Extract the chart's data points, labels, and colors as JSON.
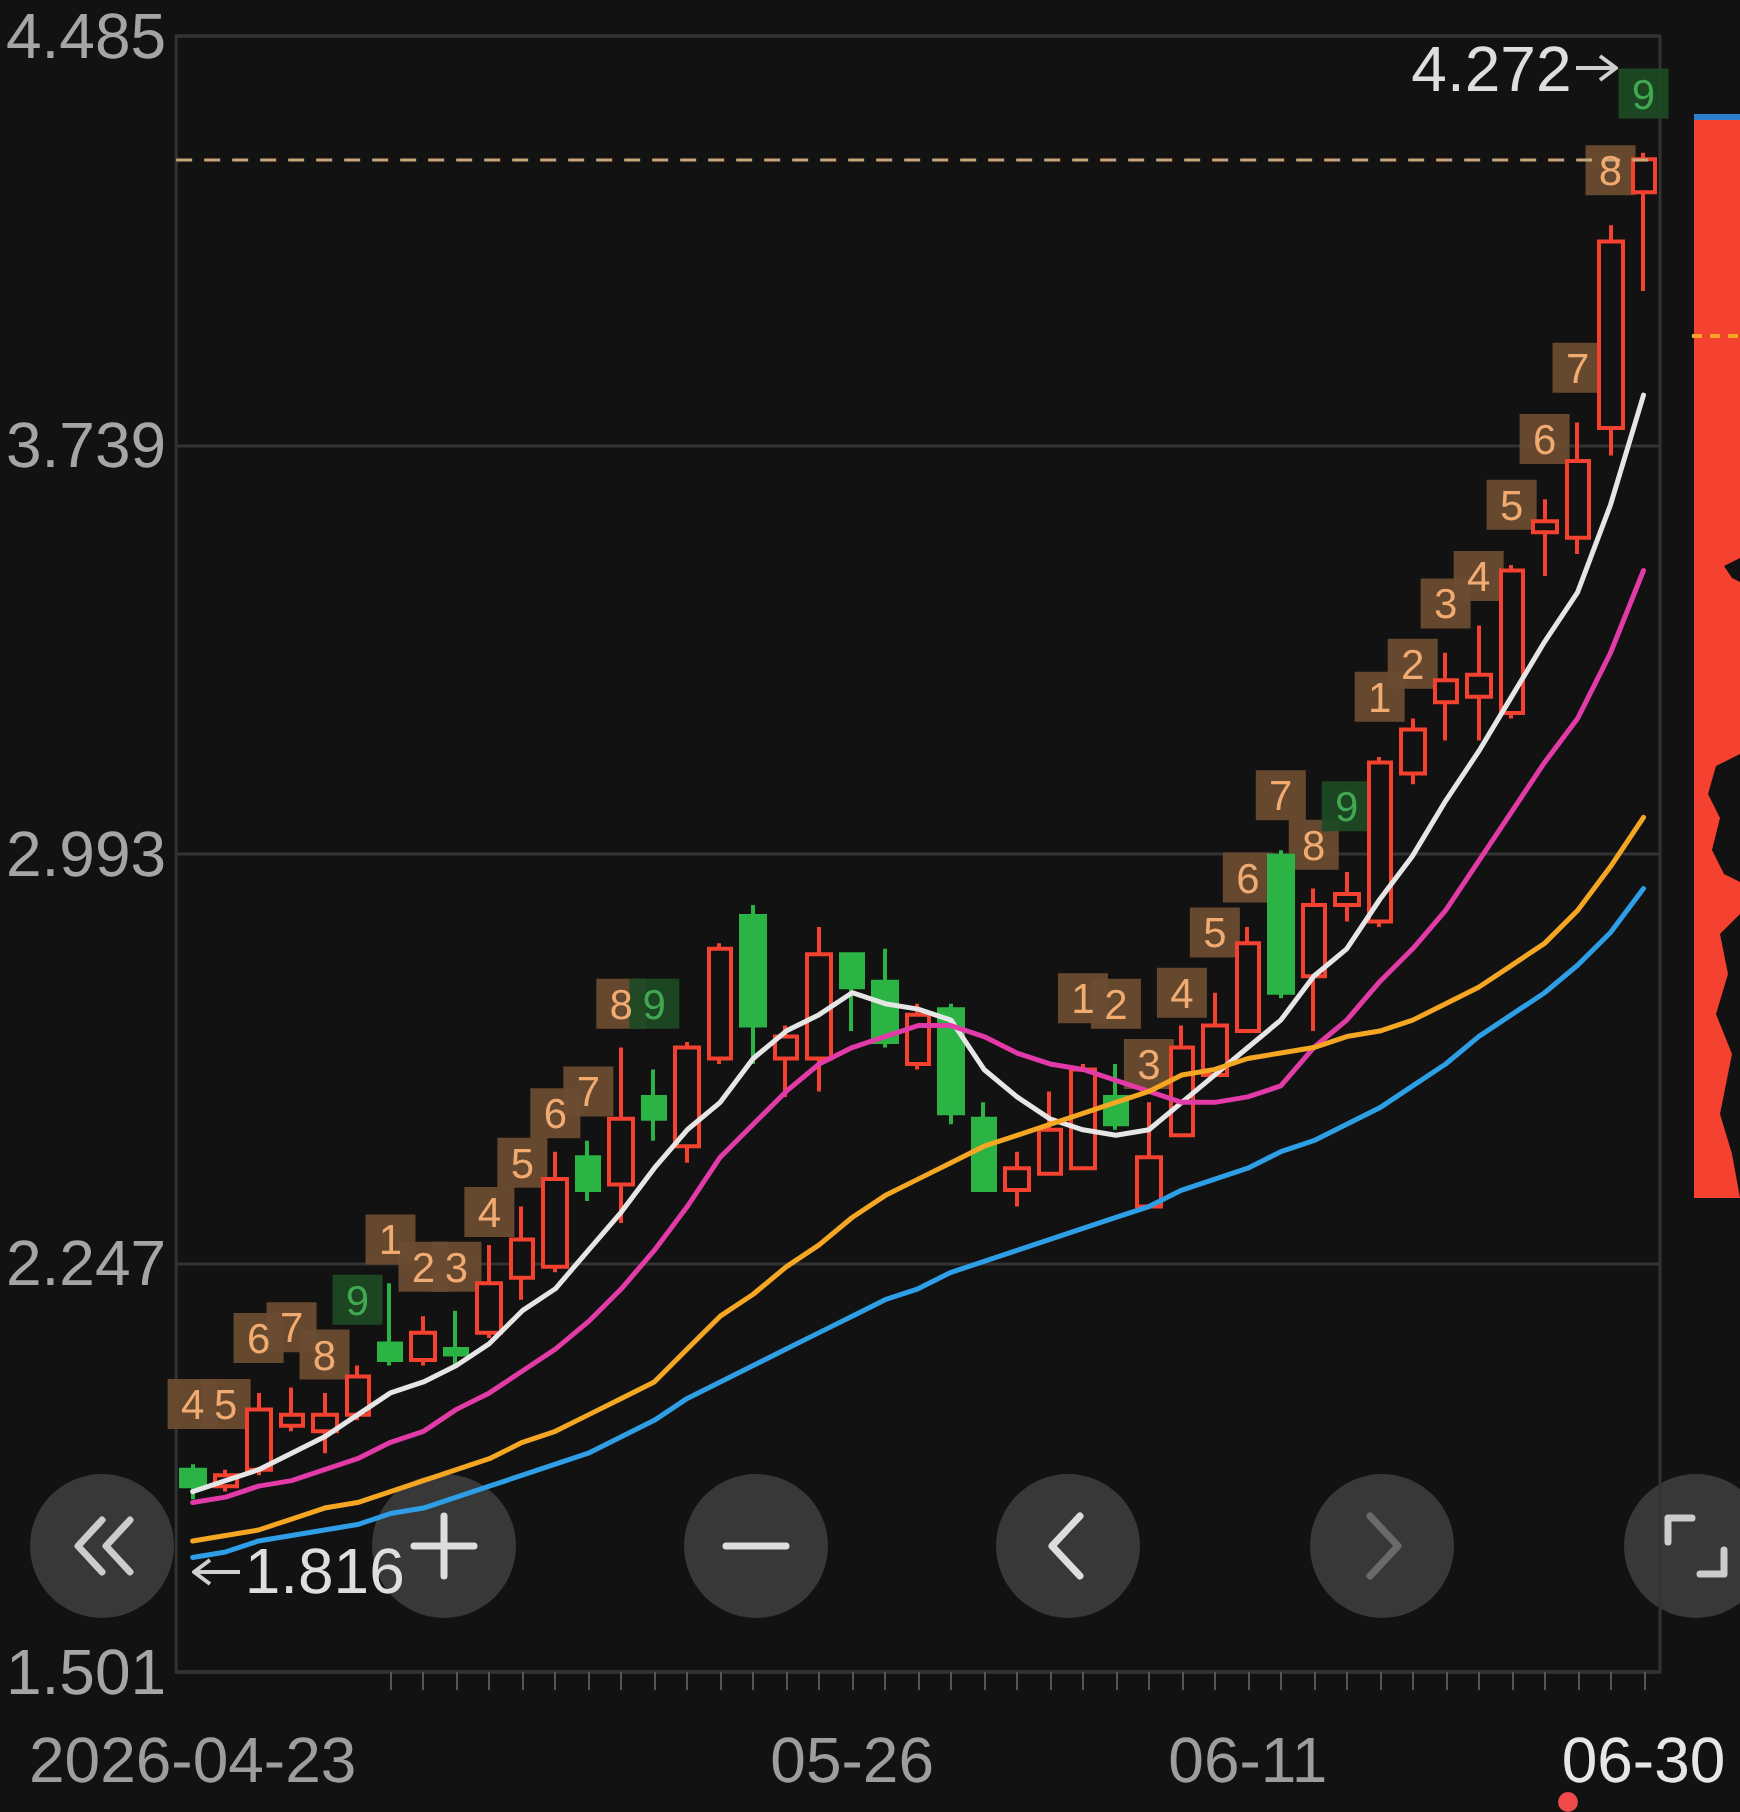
{
  "chart_data": {
    "type": "candlestick",
    "categories": [
      "2026-04-23",
      null,
      null,
      null,
      null,
      null,
      null,
      null,
      null,
      null,
      null,
      null,
      null,
      null,
      null,
      null,
      null,
      null,
      null,
      null,
      "05-26",
      null,
      null,
      null,
      null,
      null,
      null,
      null,
      null,
      null,
      null,
      null,
      "06-11",
      null,
      null,
      null,
      null,
      null,
      null,
      null,
      null,
      null,
      null,
      null,
      "06-30"
    ],
    "ohlc": [
      [
        1.87,
        1.88,
        1.816,
        1.84
      ],
      [
        1.84,
        1.87,
        1.83,
        1.86
      ],
      [
        1.87,
        2.01,
        1.86,
        1.98
      ],
      [
        1.95,
        2.02,
        1.94,
        1.97
      ],
      [
        1.94,
        2.01,
        1.9,
        1.97
      ],
      [
        1.97,
        2.06,
        1.96,
        2.04
      ],
      [
        2.1,
        2.21,
        2.06,
        2.07
      ],
      [
        2.07,
        2.15,
        2.06,
        2.12
      ],
      [
        2.09,
        2.16,
        2.06,
        2.08
      ],
      [
        2.12,
        2.28,
        2.11,
        2.21
      ],
      [
        2.22,
        2.35,
        2.18,
        2.29
      ],
      [
        2.24,
        2.45,
        2.23,
        2.4
      ],
      [
        2.44,
        2.47,
        2.36,
        2.38
      ],
      [
        2.39,
        2.64,
        2.32,
        2.51
      ],
      [
        2.55,
        2.6,
        2.47,
        2.51
      ],
      [
        2.46,
        2.65,
        2.43,
        2.64
      ],
      [
        2.62,
        2.83,
        2.61,
        2.82
      ],
      [
        2.88,
        2.9,
        2.61,
        2.68
      ],
      [
        2.62,
        2.68,
        2.55,
        2.66
      ],
      [
        2.62,
        2.86,
        2.56,
        2.81
      ],
      [
        2.81,
        2.81,
        2.67,
        2.75
      ],
      [
        2.76,
        2.82,
        2.64,
        2.65
      ],
      [
        2.61,
        2.72,
        2.6,
        2.7
      ],
      [
        2.71,
        2.72,
        2.5,
        2.52
      ],
      [
        2.51,
        2.54,
        2.38,
        2.38
      ],
      [
        2.38,
        2.45,
        2.35,
        2.42
      ],
      [
        2.41,
        2.56,
        2.41,
        2.49
      ],
      [
        2.42,
        2.61,
        2.42,
        2.6
      ],
      [
        2.55,
        2.61,
        2.49,
        2.5
      ],
      [
        2.35,
        2.54,
        2.35,
        2.44
      ],
      [
        2.48,
        2.68,
        2.48,
        2.64
      ],
      [
        2.59,
        2.74,
        2.59,
        2.68
      ],
      [
        2.67,
        2.86,
        2.67,
        2.83
      ],
      [
        2.99,
        3.0,
        2.73,
        2.74
      ],
      [
        2.77,
        2.93,
        2.67,
        2.9
      ],
      [
        2.9,
        2.96,
        2.87,
        2.92
      ],
      [
        2.87,
        3.17,
        2.86,
        3.16
      ],
      [
        3.14,
        3.24,
        3.12,
        3.22
      ],
      [
        3.27,
        3.36,
        3.2,
        3.31
      ],
      [
        3.28,
        3.41,
        3.2,
        3.32
      ],
      [
        3.25,
        3.52,
        3.24,
        3.51
      ],
      [
        3.58,
        3.64,
        3.5,
        3.6
      ],
      [
        3.57,
        3.78,
        3.54,
        3.71
      ],
      [
        3.77,
        4.14,
        3.72,
        4.11
      ],
      [
        4.2,
        4.272,
        4.02,
        4.26
      ]
    ],
    "colors": [
      "#2bb344",
      "#f5412f",
      "#f5412f",
      "#f5412f",
      "#f5412f",
      "#f5412f",
      "#2bb344",
      "#f5412f",
      "#2bb344",
      "#f5412f",
      "#f5412f",
      "#f5412f",
      "#2bb344",
      "#f5412f",
      "#2bb344",
      "#f5412f",
      "#f5412f",
      "#2bb344",
      "#f5412f",
      "#f5412f",
      "#2bb344",
      "#2bb344",
      "#f5412f",
      "#2bb344",
      "#2bb344",
      "#f5412f",
      "#f5412f",
      "#f5412f",
      "#2bb344",
      "#f5412f",
      "#f5412f",
      "#f5412f",
      "#f5412f",
      "#2bb344",
      "#f5412f",
      "#f5412f",
      "#f5412f",
      "#f5412f",
      "#f5412f",
      "#f5412f",
      "#f5412f",
      "#f5412f",
      "#f5412f",
      "#f5412f",
      "#f5412f"
    ],
    "series": [
      {
        "type": "line",
        "color": "#e6e6e6",
        "values": [
          1.83,
          1.85,
          1.87,
          1.9,
          1.93,
          1.97,
          2.01,
          2.03,
          2.06,
          2.1,
          2.16,
          2.2,
          2.27,
          2.34,
          2.42,
          2.49,
          2.54,
          2.62,
          2.67,
          2.7,
          2.74,
          2.72,
          2.71,
          2.69,
          2.6,
          2.55,
          2.51,
          2.49,
          2.48,
          2.49,
          2.54,
          2.59,
          2.64,
          2.69,
          2.77,
          2.82,
          2.91,
          2.99,
          3.09,
          3.18,
          3.28,
          3.38,
          3.47,
          3.63,
          3.83
        ]
      },
      {
        "type": "line",
        "color": "#e23aa6",
        "values": [
          1.81,
          1.82,
          1.84,
          1.85,
          1.87,
          1.89,
          1.92,
          1.94,
          1.98,
          2.01,
          2.05,
          2.09,
          2.14,
          2.2,
          2.27,
          2.35,
          2.44,
          2.5,
          2.56,
          2.61,
          2.64,
          2.66,
          2.68,
          2.68,
          2.66,
          2.63,
          2.61,
          2.6,
          2.58,
          2.56,
          2.54,
          2.54,
          2.55,
          2.57,
          2.64,
          2.69,
          2.76,
          2.82,
          2.89,
          2.98,
          3.07,
          3.16,
          3.24,
          3.36,
          3.51
        ]
      },
      {
        "type": "line",
        "color": "#f5a623",
        "values": [
          1.74,
          1.75,
          1.76,
          1.78,
          1.8,
          1.81,
          1.83,
          1.85,
          1.87,
          1.89,
          1.92,
          1.94,
          1.97,
          2.0,
          2.03,
          2.09,
          2.15,
          2.19,
          2.24,
          2.28,
          2.33,
          2.37,
          2.4,
          2.43,
          2.46,
          2.48,
          2.5,
          2.52,
          2.54,
          2.56,
          2.59,
          2.6,
          2.62,
          2.63,
          2.64,
          2.66,
          2.67,
          2.69,
          2.72,
          2.75,
          2.79,
          2.83,
          2.89,
          2.97,
          3.06
        ]
      },
      {
        "type": "line",
        "color": "#2e9fe6",
        "values": [
          1.71,
          1.72,
          1.74,
          1.75,
          1.76,
          1.77,
          1.79,
          1.8,
          1.82,
          1.84,
          1.86,
          1.88,
          1.9,
          1.93,
          1.96,
          2.0,
          2.03,
          2.06,
          2.09,
          2.12,
          2.15,
          2.18,
          2.2,
          2.23,
          2.25,
          2.27,
          2.29,
          2.31,
          2.33,
          2.35,
          2.38,
          2.4,
          2.42,
          2.45,
          2.47,
          2.5,
          2.53,
          2.57,
          2.61,
          2.66,
          2.7,
          2.74,
          2.79,
          2.85,
          2.93
        ]
      },
      {
        "type": "scatter",
        "color": "#6b4c32",
        "marker": "square",
        "values": [
          1.99,
          1.99,
          2.11,
          2.13,
          2.08,
          null,
          2.29,
          2.24,
          2.24,
          2.34,
          2.43,
          2.52,
          2.56,
          2.72,
          null,
          null,
          null,
          null,
          null,
          null,
          null,
          null,
          null,
          null,
          null,
          null,
          null,
          2.73,
          2.72,
          2.61,
          2.74,
          2.85,
          2.95,
          3.1,
          3.01,
          null,
          3.28,
          3.34,
          3.45,
          3.5,
          3.63,
          3.75,
          3.88,
          4.24,
          null
        ]
      },
      {
        "type": "scatter",
        "color": "#1d4a24",
        "marker": "square",
        "values": [
          null,
          null,
          null,
          null,
          null,
          2.18,
          null,
          null,
          null,
          null,
          null,
          null,
          null,
          null,
          2.72,
          null,
          null,
          null,
          null,
          null,
          null,
          null,
          null,
          null,
          null,
          null,
          null,
          null,
          null,
          null,
          null,
          null,
          null,
          null,
          null,
          3.08,
          null,
          null,
          null,
          null,
          null,
          null,
          null,
          null,
          4.38
        ]
      }
    ],
    "ylim": [
      1.501,
      4.485
    ],
    "yticks": [
      1.501,
      2.247,
      2.993,
      3.739,
      4.485
    ],
    "grid": "y",
    "marker": "none",
    "line_style": "solid",
    "ref_lines": [
      {
        "axis": "y",
        "value": 4.26,
        "color": "#c9a67a",
        "line_style": "dashed"
      }
    ],
    "annotations": [
      {
        "text": "4.272",
        "x": "06-30",
        "y": 4.272
      },
      {
        "text": "1.816",
        "x": "2026-04-23",
        "y": 1.816
      },
      "4",
      "5",
      "6",
      "7",
      "8",
      "9",
      "1",
      "2",
      "3",
      "4",
      "5",
      "6",
      "7",
      "8",
      "9",
      "1",
      "2",
      "3",
      "4",
      "5",
      "6",
      "7",
      "8",
      "9",
      "1",
      "2",
      "3",
      "4",
      "5",
      "6",
      "7",
      "8",
      "9"
    ]
  }
}
